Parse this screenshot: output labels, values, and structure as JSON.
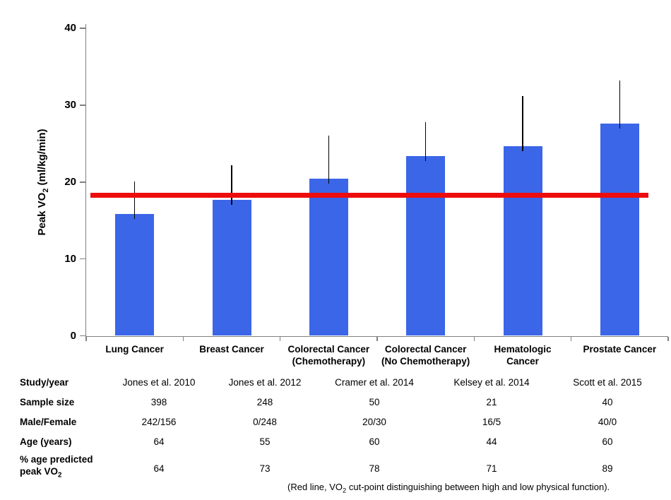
{
  "chart_data": {
    "type": "bar",
    "title": "",
    "ylabel_prefix": "Peak VO",
    "ylabel_sub": "2",
    "ylabel_suffix": " (ml/kg/min)",
    "ylim": [
      0,
      40
    ],
    "yticks": [
      0,
      10,
      20,
      30,
      40
    ],
    "grid": false,
    "legend": false,
    "bar_color": "#3B66E8",
    "axis_color": "#808080",
    "error_bar_color": "#000000",
    "categories": [
      "Lung Cancer",
      "Breast Cancer",
      "Colorectal Cancer\n(Chemotherapy)",
      "Colorectal Cancer\n(No Chemotherapy)",
      "Hematologic\nCancer",
      "Prostate Cancer"
    ],
    "values": [
      15.8,
      17.7,
      20.4,
      23.4,
      24.7,
      27.6
    ],
    "error_upper_tops": [
      20.1,
      22.2,
      26.0,
      27.8,
      31.2,
      33.2
    ],
    "reference_line": {
      "value": 18.3,
      "color": "#ED0D0D",
      "meaning": "VO2 cut-point distinguishing between high and low physical function"
    }
  },
  "table": {
    "row_labels": [
      "Study/year",
      "Sample size",
      "Male/Female",
      "Age (years)"
    ],
    "row5_label": {
      "line1": "% age predicted",
      "line2_prefix": "peak VO",
      "line2_sub": "2"
    },
    "rows": {
      "study_year": [
        "Jones et al. 2010",
        "Jones et al. 2012",
        "Cramer et al. 2014",
        "Kelsey et al. 2014",
        "Scott et al. 2015"
      ],
      "sample_size": [
        "398",
        "248",
        "50",
        "21",
        "40"
      ],
      "male_female": [
        "242/156",
        "0/248",
        "20/30",
        "16/5",
        "40/0"
      ],
      "age_years": [
        "64",
        "55",
        "60",
        "44",
        "60"
      ],
      "pct_age_predicted_peak_vo2": [
        "64",
        "73",
        "78",
        "71",
        "89"
      ]
    }
  },
  "caption": {
    "prefix": "(Red line, VO",
    "sub": "2",
    "suffix": " cut-point distinguishing between high and low physical function)."
  }
}
